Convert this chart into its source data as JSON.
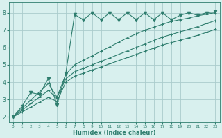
{
  "title": "",
  "xlabel": "Humidex (Indice chaleur)",
  "ylabel": "",
  "bg_color": "#d8f0ee",
  "line_color": "#2e7d6e",
  "grid_color": "#aacccc",
  "xlim": [
    -0.5,
    23.5
  ],
  "ylim": [
    1.7,
    8.6
  ],
  "xticks": [
    0,
    1,
    2,
    3,
    4,
    5,
    6,
    7,
    8,
    9,
    10,
    11,
    12,
    13,
    14,
    15,
    16,
    17,
    18,
    19,
    20,
    21,
    22,
    23
  ],
  "yticks": [
    2,
    3,
    4,
    5,
    6,
    7,
    8
  ],
  "line1_x": [
    0,
    1,
    2,
    3,
    4,
    5,
    6,
    7,
    8,
    9,
    10,
    11,
    12,
    13,
    14,
    15,
    16,
    17,
    18,
    19,
    20,
    21,
    22,
    23
  ],
  "line1_y": [
    2.0,
    2.6,
    3.4,
    3.3,
    4.2,
    2.7,
    4.5,
    7.9,
    7.6,
    8.0,
    7.6,
    8.0,
    7.6,
    8.0,
    7.6,
    8.0,
    7.6,
    8.0,
    7.6,
    7.85,
    8.0,
    7.85,
    8.0,
    8.05
  ],
  "line2_x": [
    0,
    1,
    2,
    3,
    4,
    5,
    6,
    7,
    8,
    9,
    10,
    11,
    12,
    13,
    14,
    15,
    16,
    17,
    18,
    19,
    20,
    21,
    22,
    23
  ],
  "line2_y": [
    2.0,
    2.48,
    2.96,
    3.44,
    3.92,
    3.15,
    4.45,
    5.0,
    5.26,
    5.52,
    5.78,
    6.04,
    6.3,
    6.56,
    6.78,
    7.0,
    7.17,
    7.34,
    7.5,
    7.6,
    7.7,
    7.82,
    7.92,
    8.0
  ],
  "line3_x": [
    0,
    1,
    2,
    3,
    4,
    5,
    6,
    7,
    8,
    9,
    10,
    11,
    12,
    13,
    14,
    15,
    16,
    17,
    18,
    19,
    20,
    21,
    22,
    23
  ],
  "line3_y": [
    2.0,
    2.38,
    2.76,
    3.14,
    3.52,
    3.1,
    4.2,
    4.6,
    4.8,
    5.0,
    5.2,
    5.4,
    5.6,
    5.8,
    6.0,
    6.2,
    6.4,
    6.6,
    6.75,
    6.9,
    7.05,
    7.2,
    7.38,
    7.55
  ],
  "line4_x": [
    0,
    1,
    2,
    3,
    4,
    5,
    6,
    7,
    8,
    9,
    10,
    11,
    12,
    13,
    14,
    15,
    16,
    17,
    18,
    19,
    20,
    21,
    22,
    23
  ],
  "line4_y": [
    2.0,
    2.28,
    2.56,
    2.84,
    3.12,
    2.9,
    4.0,
    4.35,
    4.52,
    4.7,
    4.88,
    5.06,
    5.24,
    5.42,
    5.6,
    5.78,
    5.96,
    6.14,
    6.28,
    6.42,
    6.56,
    6.7,
    6.87,
    7.05
  ],
  "marker_size": 2.0,
  "line_width": 0.8
}
